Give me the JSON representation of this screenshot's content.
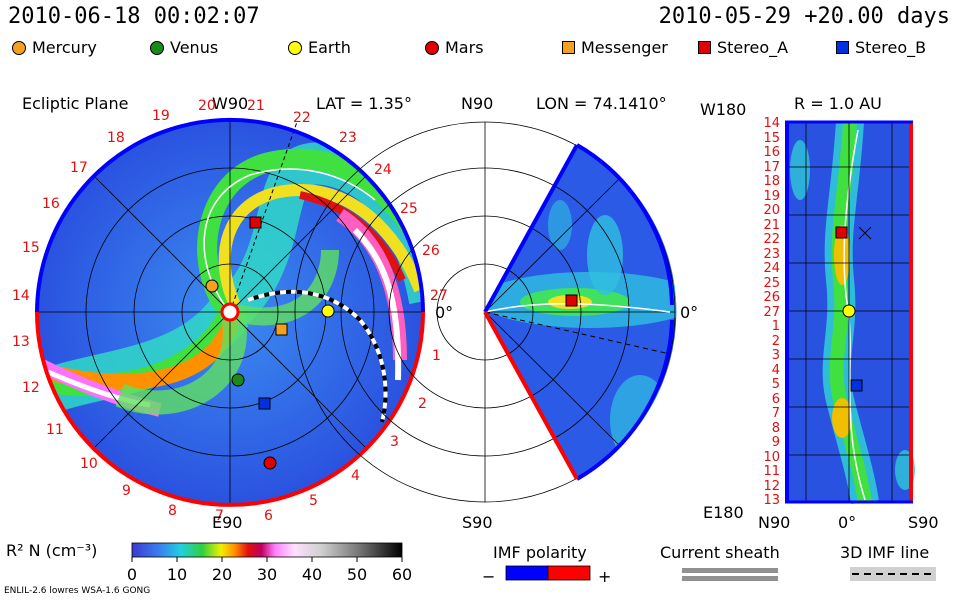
{
  "header": {
    "date_time": "2010-06-18 00:02:07",
    "forecast": "2010-05-29 +20.00 days"
  },
  "legend": [
    {
      "name": "Mercury",
      "shape": "circle",
      "color": "#f4a020"
    },
    {
      "name": "Venus",
      "shape": "circle",
      "color": "#1a8a1a"
    },
    {
      "name": "Earth",
      "shape": "circle",
      "color": "#ffff00"
    },
    {
      "name": "Mars",
      "shape": "circle",
      "color": "#e00000"
    },
    {
      "name": "Messenger",
      "shape": "square",
      "color": "#f4a020"
    },
    {
      "name": "Stereo_A",
      "shape": "square",
      "color": "#e00000"
    },
    {
      "name": "Stereo_B",
      "shape": "square",
      "color": "#0030e0"
    }
  ],
  "panels": {
    "ecliptic": {
      "title": "Ecliptic Plane",
      "top_label": "W90",
      "bottom_label": "E90",
      "lat_text": "LAT = 1.35°",
      "zero_label": "0°"
    },
    "meridional": {
      "top_label": "N90",
      "bottom_label": "S90",
      "lon_text": "LON = 74.1410°",
      "zero_label": "0°"
    },
    "radial": {
      "top_label": "W180",
      "bottom_label": "E180",
      "r_text": "R = 1.0 AU",
      "xaxis_left": "N90",
      "xaxis_mid": "0°",
      "xaxis_right": "S90"
    }
  },
  "colorbar": {
    "title": "R² N (cm⁻³)",
    "ticks": [
      "0",
      "10",
      "20",
      "30",
      "40",
      "50",
      "60"
    ]
  },
  "imf": {
    "title": "IMF polarity",
    "minus": "−",
    "plus": "+",
    "neg_color": "#0000ff",
    "pos_color": "#ff0000"
  },
  "current_sheath": {
    "title": "Current sheath"
  },
  "imf_line": {
    "title": "3D IMF line"
  },
  "footer": {
    "model_text": "ENLIL-2.6 lowres WSA-1.6 GONG"
  },
  "chart_data": {
    "type": "heatmap",
    "description_units": "R^2 N (cm^-3), colour scale 0-60",
    "carrington_rotation_ticks_ecliptic": [
      "19",
      "20",
      "21",
      "22",
      "23",
      "24",
      "25",
      "26",
      "27",
      "1",
      "2",
      "3",
      "4",
      "5",
      "6",
      "7",
      "8",
      "9",
      "10",
      "11",
      "12",
      "13",
      "14",
      "15",
      "16",
      "17",
      "18"
    ],
    "carrington_rotation_ticks_radial": [
      "14",
      "15",
      "16",
      "17",
      "18",
      "19",
      "20",
      "21",
      "22",
      "23",
      "24",
      "25",
      "26",
      "27",
      "1",
      "2",
      "3",
      "4",
      "5",
      "6",
      "7",
      "8",
      "9",
      "10",
      "11",
      "12",
      "13"
    ]
  }
}
